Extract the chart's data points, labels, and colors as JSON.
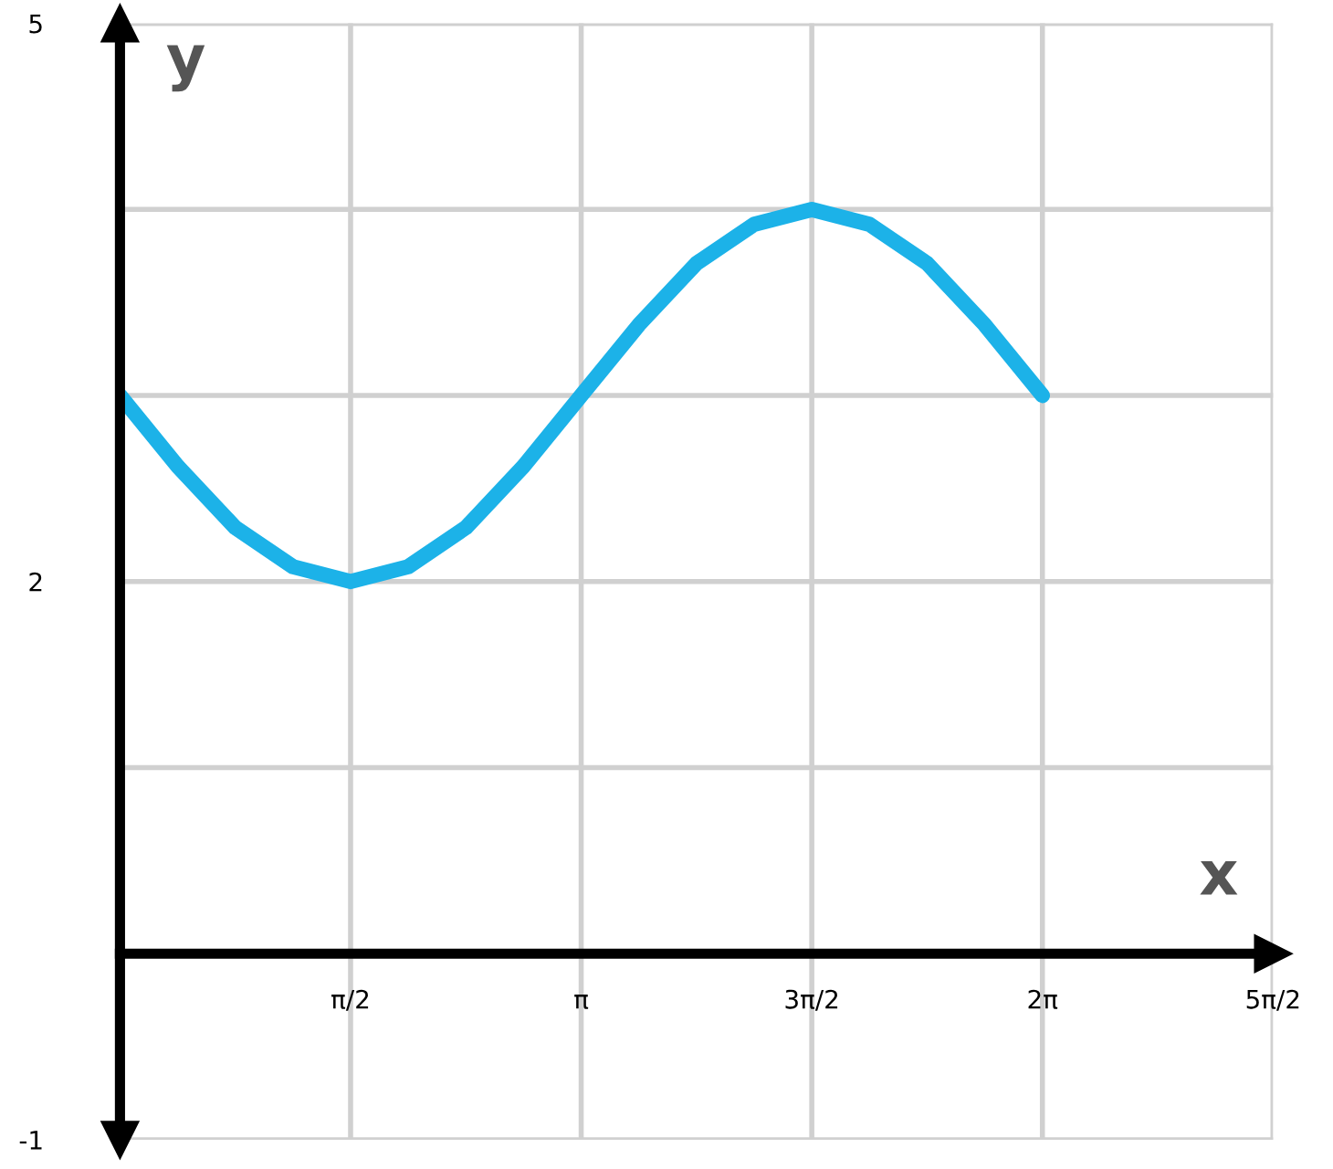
{
  "chart_data": {
    "type": "line",
    "xlabel": "x",
    "ylabel": "y",
    "x": [
      0,
      0.3927,
      0.7854,
      1.1781,
      1.5708,
      1.9635,
      2.3562,
      2.7489,
      3.1416,
      3.5343,
      3.927,
      4.3197,
      4.7124,
      5.1051,
      5.4978,
      5.8905,
      6.2832
    ],
    "series": [
      {
        "color": "#1cb2e8",
        "values": [
          3,
          2.62,
          2.29,
          2.08,
          2,
          2.08,
          2.29,
          2.62,
          3,
          3.38,
          3.71,
          3.92,
          4,
          3.92,
          3.71,
          3.38,
          3
        ]
      }
    ],
    "xlim": [
      0,
      7.854
    ],
    "ylim": [
      -1,
      5
    ],
    "xticks": [
      {
        "value": 1.5708,
        "label": "π/2"
      },
      {
        "value": 3.1416,
        "label": "π"
      },
      {
        "value": 4.7124,
        "label": "3π/2"
      },
      {
        "value": 6.2832,
        "label": "2π"
      },
      {
        "value": 7.854,
        "label": "5π/2"
      }
    ],
    "yticks": [
      -1,
      {
        "value": 0,
        "label": null
      },
      {
        "value": 1,
        "label": null
      },
      2,
      {
        "value": 3,
        "label": null
      },
      {
        "value": 4,
        "label": null
      },
      5
    ],
    "grid": true,
    "marker": "none",
    "line_style": "solid",
    "legend": false
  }
}
